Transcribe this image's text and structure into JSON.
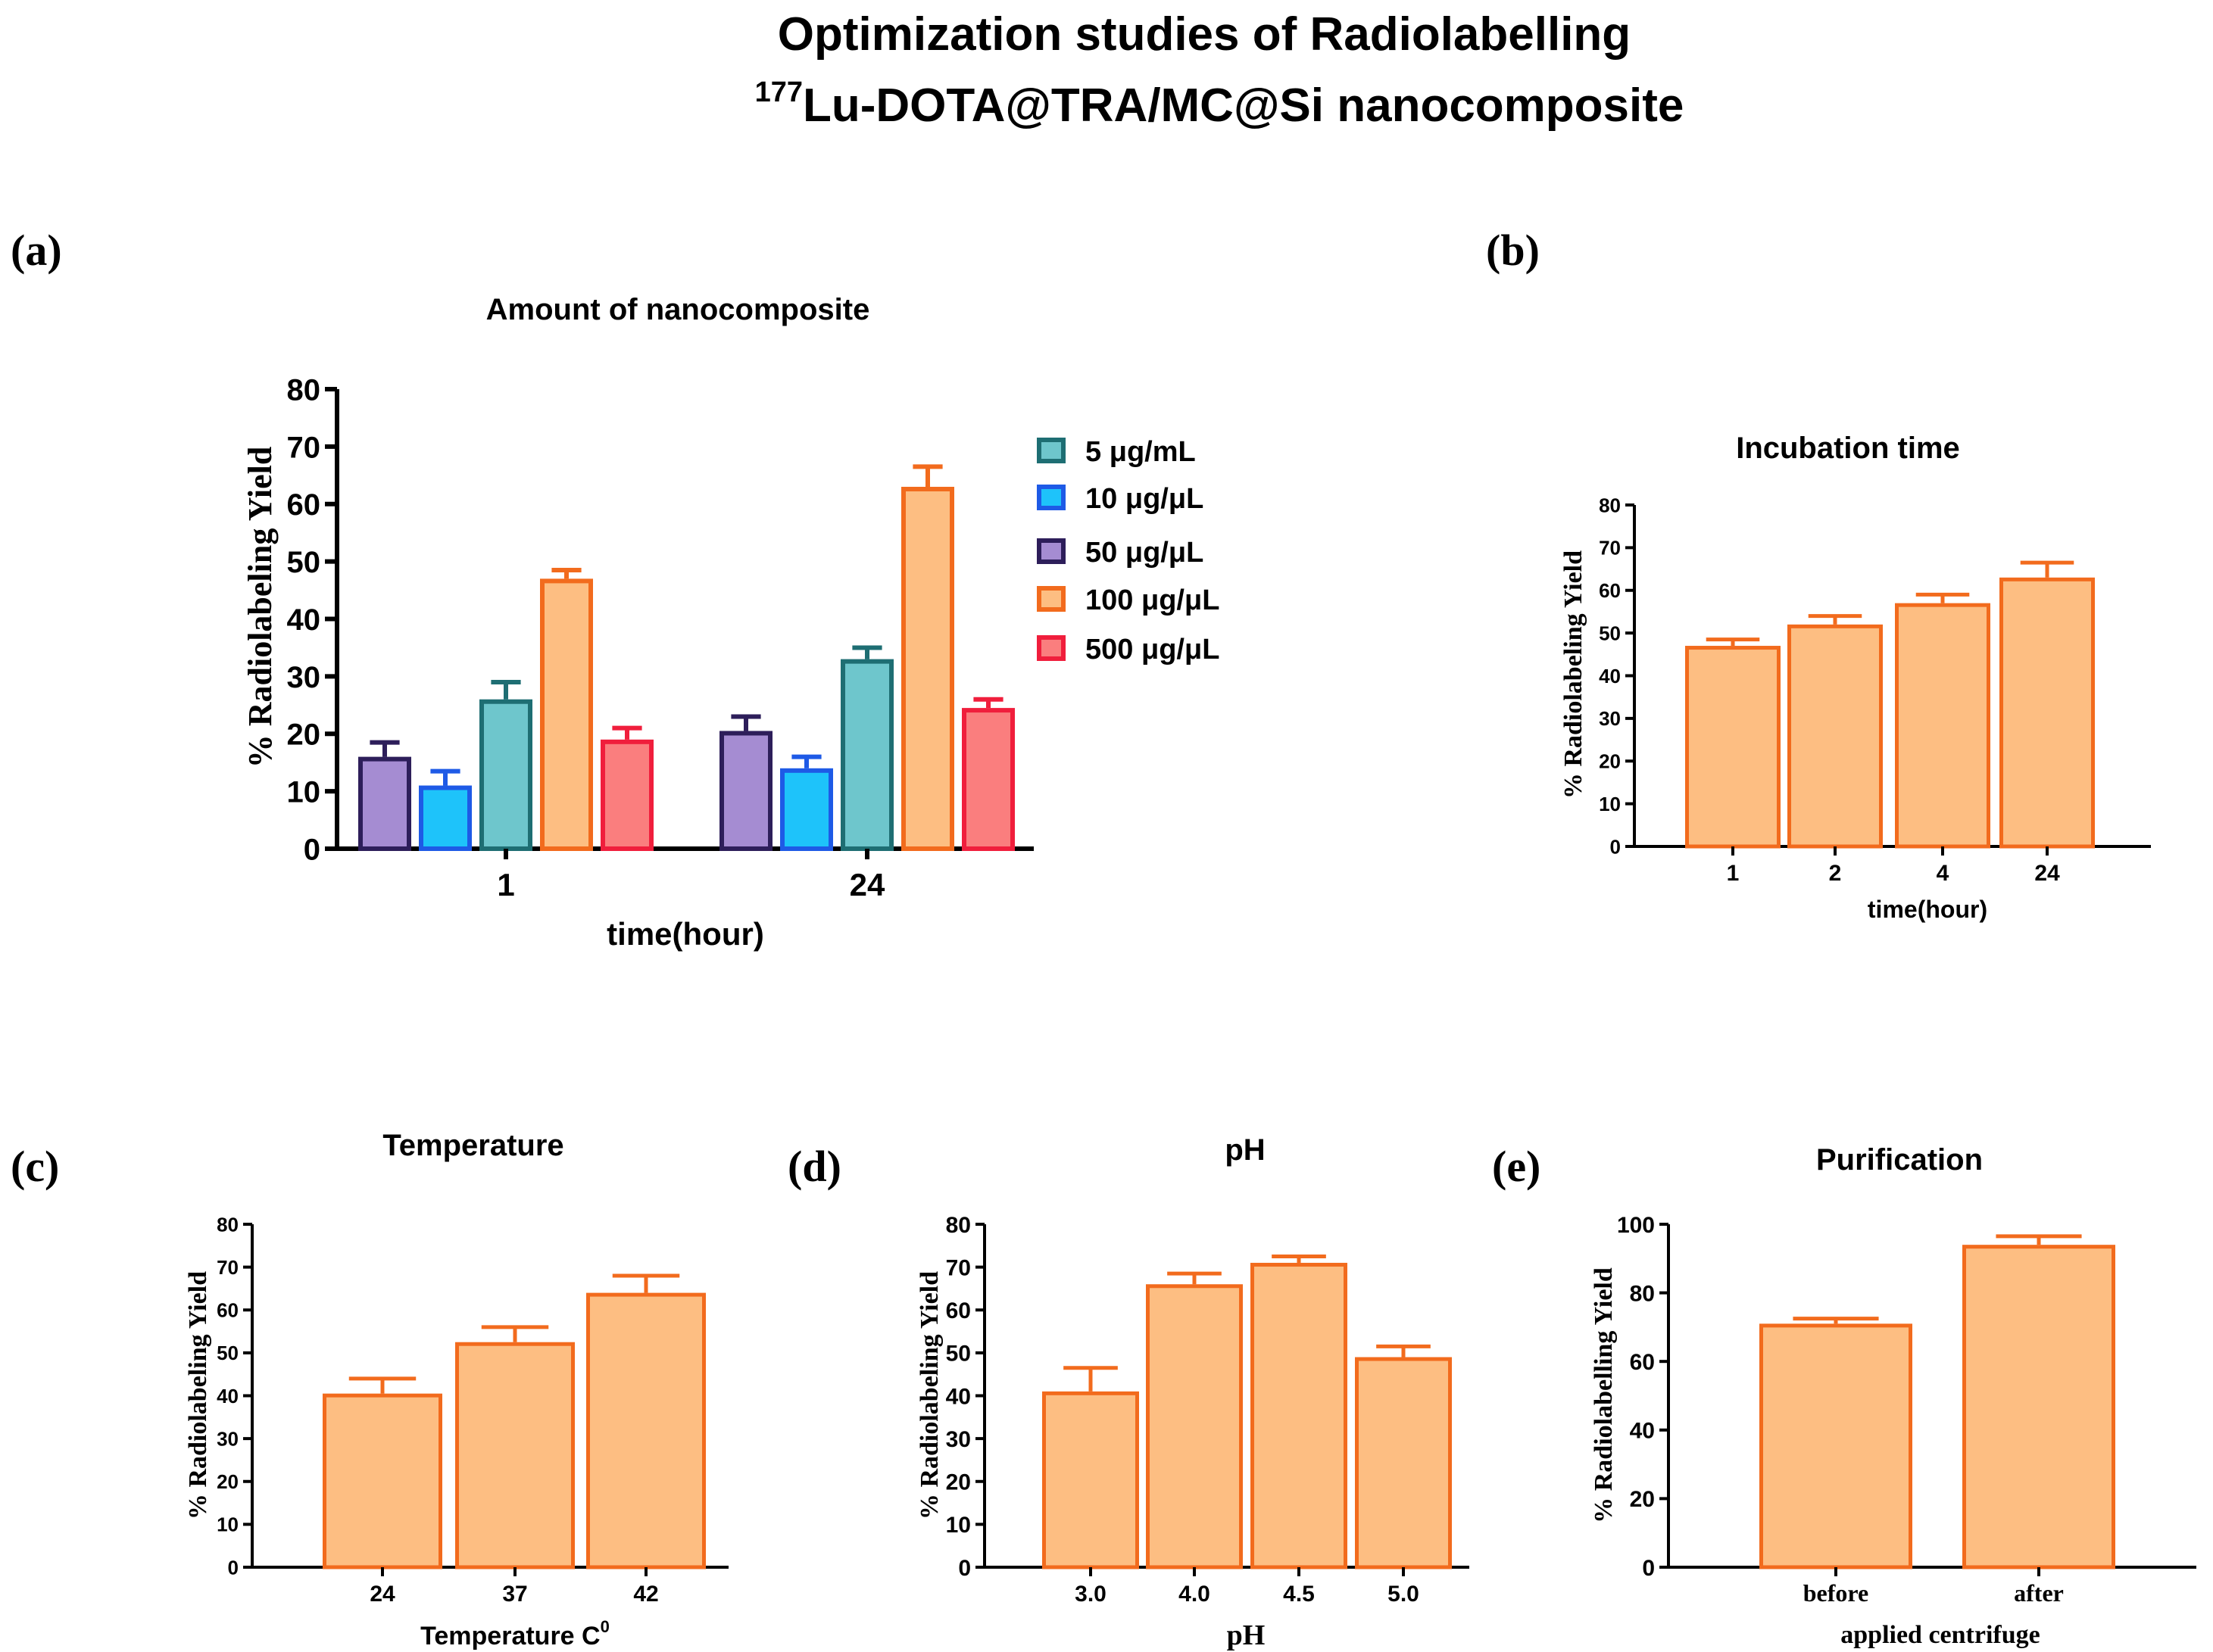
{
  "figure": {
    "title_line1": "Optimization studies of Radiolabelling",
    "title_sup": "177",
    "title_line2": "Lu-DOTA@TRA/MC@Si nanocomposite"
  },
  "colors": {
    "orange_edge": "#F26B1D",
    "orange_fill": "#FDBE82"
  },
  "chart_data": [
    {
      "id": "a",
      "panel_label": "(a)",
      "type": "bar",
      "title": "Amount of nanocomposite",
      "xlabel": "time(hour)",
      "ylabel": "% Radiolabeling Yield",
      "ylim": [
        0,
        80
      ],
      "yticks": [
        0,
        10,
        20,
        30,
        40,
        50,
        60,
        70,
        80
      ],
      "categories": [
        "1",
        "24"
      ],
      "bar_order": [
        "50 μg/μL",
        "10 μg/μL",
        "5 μg/mL",
        "100 μg/μL",
        "500 μg/μL"
      ],
      "series": [
        {
          "name": "5 μg/mL",
          "values": [
            26,
            33
          ],
          "errors": [
            3,
            2
          ],
          "fill": "#6EC6CC",
          "edge": "#1E6E73"
        },
        {
          "name": "10 μg/μL",
          "values": [
            11,
            14
          ],
          "errors": [
            2.5,
            2
          ],
          "fill": "#1EC3FA",
          "edge": "#1E5AE6"
        },
        {
          "name": "50 μg/μL",
          "values": [
            16,
            20.5
          ],
          "errors": [
            2.5,
            2.5
          ],
          "fill": "#A58CD2",
          "edge": "#2D1E5A"
        },
        {
          "name": "100 μg/μL",
          "values": [
            47,
            63
          ],
          "errors": [
            1.5,
            3.5
          ],
          "fill": "#FDBE82",
          "edge": "#F26B1D"
        },
        {
          "name": "500 μg/μL",
          "values": [
            19,
            24.5
          ],
          "errors": [
            2,
            1.5
          ],
          "fill": "#FA7E7E",
          "edge": "#F01E3C"
        }
      ]
    },
    {
      "id": "b",
      "panel_label": "(b)",
      "type": "bar",
      "title": "Incubation time",
      "xlabel": "time(hour)",
      "ylabel": "% Radiolabeling Yield",
      "ylim": [
        0,
        80
      ],
      "yticks": [
        0,
        10,
        20,
        30,
        40,
        50,
        60,
        70,
        80
      ],
      "categories": [
        "1",
        "2",
        "4",
        "24"
      ],
      "values": [
        47,
        52,
        57,
        63
      ],
      "errors": [
        1.5,
        2,
        2,
        3.5
      ]
    },
    {
      "id": "c",
      "panel_label": "(c)",
      "type": "bar",
      "title": "Temperature",
      "xlabel": "Temperature C",
      "xlabel_sup": "0",
      "ylabel": "% Radiolabeling Yield",
      "ylim": [
        0,
        80
      ],
      "yticks": [
        0,
        10,
        20,
        30,
        40,
        50,
        60,
        70,
        80
      ],
      "categories": [
        "24",
        "37",
        "42"
      ],
      "values": [
        40.5,
        52.5,
        64
      ],
      "errors": [
        3.5,
        3.5,
        4
      ]
    },
    {
      "id": "d",
      "panel_label": "(d)",
      "type": "bar",
      "title": "pH",
      "xlabel": "pH",
      "ylabel": "% Radiolabeling Yield",
      "ylim": [
        0,
        80
      ],
      "yticks": [
        0,
        10,
        20,
        30,
        40,
        50,
        60,
        70,
        80
      ],
      "categories": [
        "3.0",
        "4.0",
        "4.5",
        "5.0"
      ],
      "values": [
        41,
        66,
        71,
        49
      ],
      "errors": [
        5.5,
        2.5,
        1.5,
        2.5
      ]
    },
    {
      "id": "e",
      "panel_label": "(e)",
      "type": "bar",
      "title": "Purification",
      "xlabel": "applied centrifuge",
      "ylabel": "% Radiolabelling Yield",
      "ylim": [
        0,
        100
      ],
      "yticks": [
        0,
        20,
        40,
        60,
        80,
        100
      ],
      "categories": [
        "before",
        "after"
      ],
      "values": [
        71,
        94
      ],
      "errors": [
        1.5,
        2.5
      ]
    }
  ]
}
